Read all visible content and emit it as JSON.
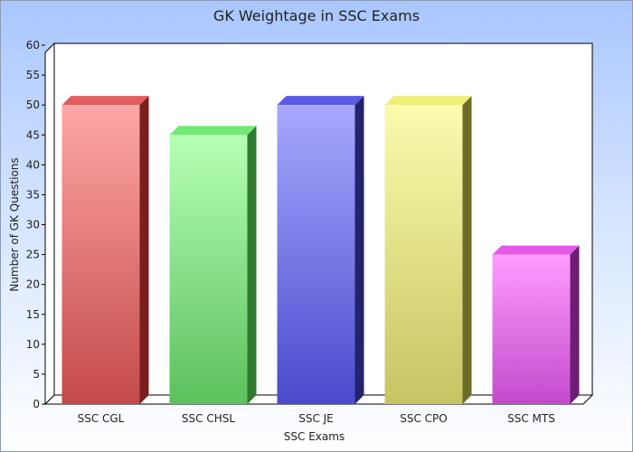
{
  "chart_data": {
    "type": "bar",
    "title": "GK Weightage in SSC Exams",
    "xlabel": "SSC Exams",
    "ylabel": "Number of GK Questions",
    "categories": [
      "SSC CGL",
      "SSC CHSL",
      "SSC JE",
      "SSC CPO",
      "SSC MTS"
    ],
    "values": [
      50,
      45,
      50,
      50,
      25
    ],
    "ylim": [
      0,
      60
    ],
    "yticks": [
      0,
      5,
      10,
      15,
      20,
      25,
      30,
      35,
      40,
      45,
      50,
      55,
      60
    ],
    "grid": false,
    "legend": "none",
    "bar_colors": [
      {
        "light": "#ffa6a6",
        "dark": "#c44a4a",
        "top": "#e25c5c",
        "side": "#7a1e1e"
      },
      {
        "light": "#b6ffb6",
        "dark": "#5cc05c",
        "top": "#74e874",
        "side": "#2f7a2f"
      },
      {
        "light": "#a8a8ff",
        "dark": "#4a4acc",
        "top": "#5a5ae8",
        "side": "#23236e"
      },
      {
        "light": "#fbfbae",
        "dark": "#c6c462",
        "top": "#eeee7a",
        "side": "#6e6c2a"
      },
      {
        "light": "#ff9cff",
        "dark": "#c44acc",
        "top": "#e45ae8",
        "side": "#6e1e74"
      }
    ]
  }
}
